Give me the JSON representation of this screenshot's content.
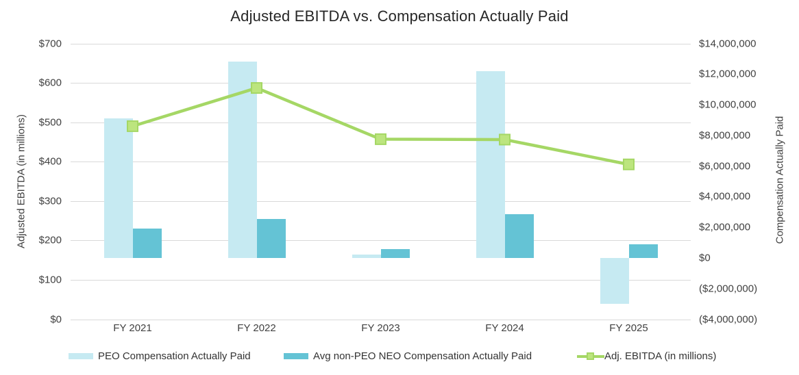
{
  "title": "Adjusted EBITDA vs. Compensation Actually Paid",
  "chart_data": {
    "type": "bar",
    "subtype": "combo clustered-bar + line, dual axis",
    "categories": [
      "FY 2021",
      "FY 2022",
      "FY 2023",
      "FY 2024",
      "FY 2025"
    ],
    "series": [
      {
        "name": "PEO Compensation Actually Paid",
        "type": "bar",
        "axis": "right",
        "color": "#c6eaf2",
        "values": [
          9100000,
          12800000,
          200000,
          12200000,
          -3000000
        ]
      },
      {
        "name": "Avg non-PEO NEO Compensation Actually Paid",
        "type": "bar",
        "axis": "right",
        "color": "#64c3d5",
        "values": [
          1900000,
          2550000,
          600000,
          2850000,
          900000
        ]
      },
      {
        "name": "Adj. EBITDA (in millions)",
        "type": "line",
        "axis": "left",
        "color": "#a5d765",
        "marker": "square",
        "marker_fill": "#bce57e",
        "values": [
          490,
          587,
          457,
          456,
          393
        ]
      }
    ],
    "left_axis": {
      "title": "Adjusted EBITDA (in millions)",
      "min": 0,
      "max": 700,
      "step": 100,
      "tick_labels": [
        "$0",
        "$100",
        "$200",
        "$300",
        "$400",
        "$500",
        "$600",
        "$700"
      ]
    },
    "right_axis": {
      "title": "Compensation Actually Paid",
      "min": -4000000,
      "max": 14000000,
      "step": 2000000,
      "tick_labels": [
        "($4,000,000)",
        "($2,000,000)",
        "$0",
        "$2,000,000",
        "$4,000,000",
        "$6,000,000",
        "$8,000,000",
        "$10,000,000",
        "$12,000,000",
        "$14,000,000"
      ]
    },
    "grid": "horizontal gridlines at left-axis ticks",
    "legend_position": "bottom"
  },
  "colors": {
    "gridline": "#d9d9d9",
    "tick_text": "#404040",
    "title_text": "#262626"
  }
}
